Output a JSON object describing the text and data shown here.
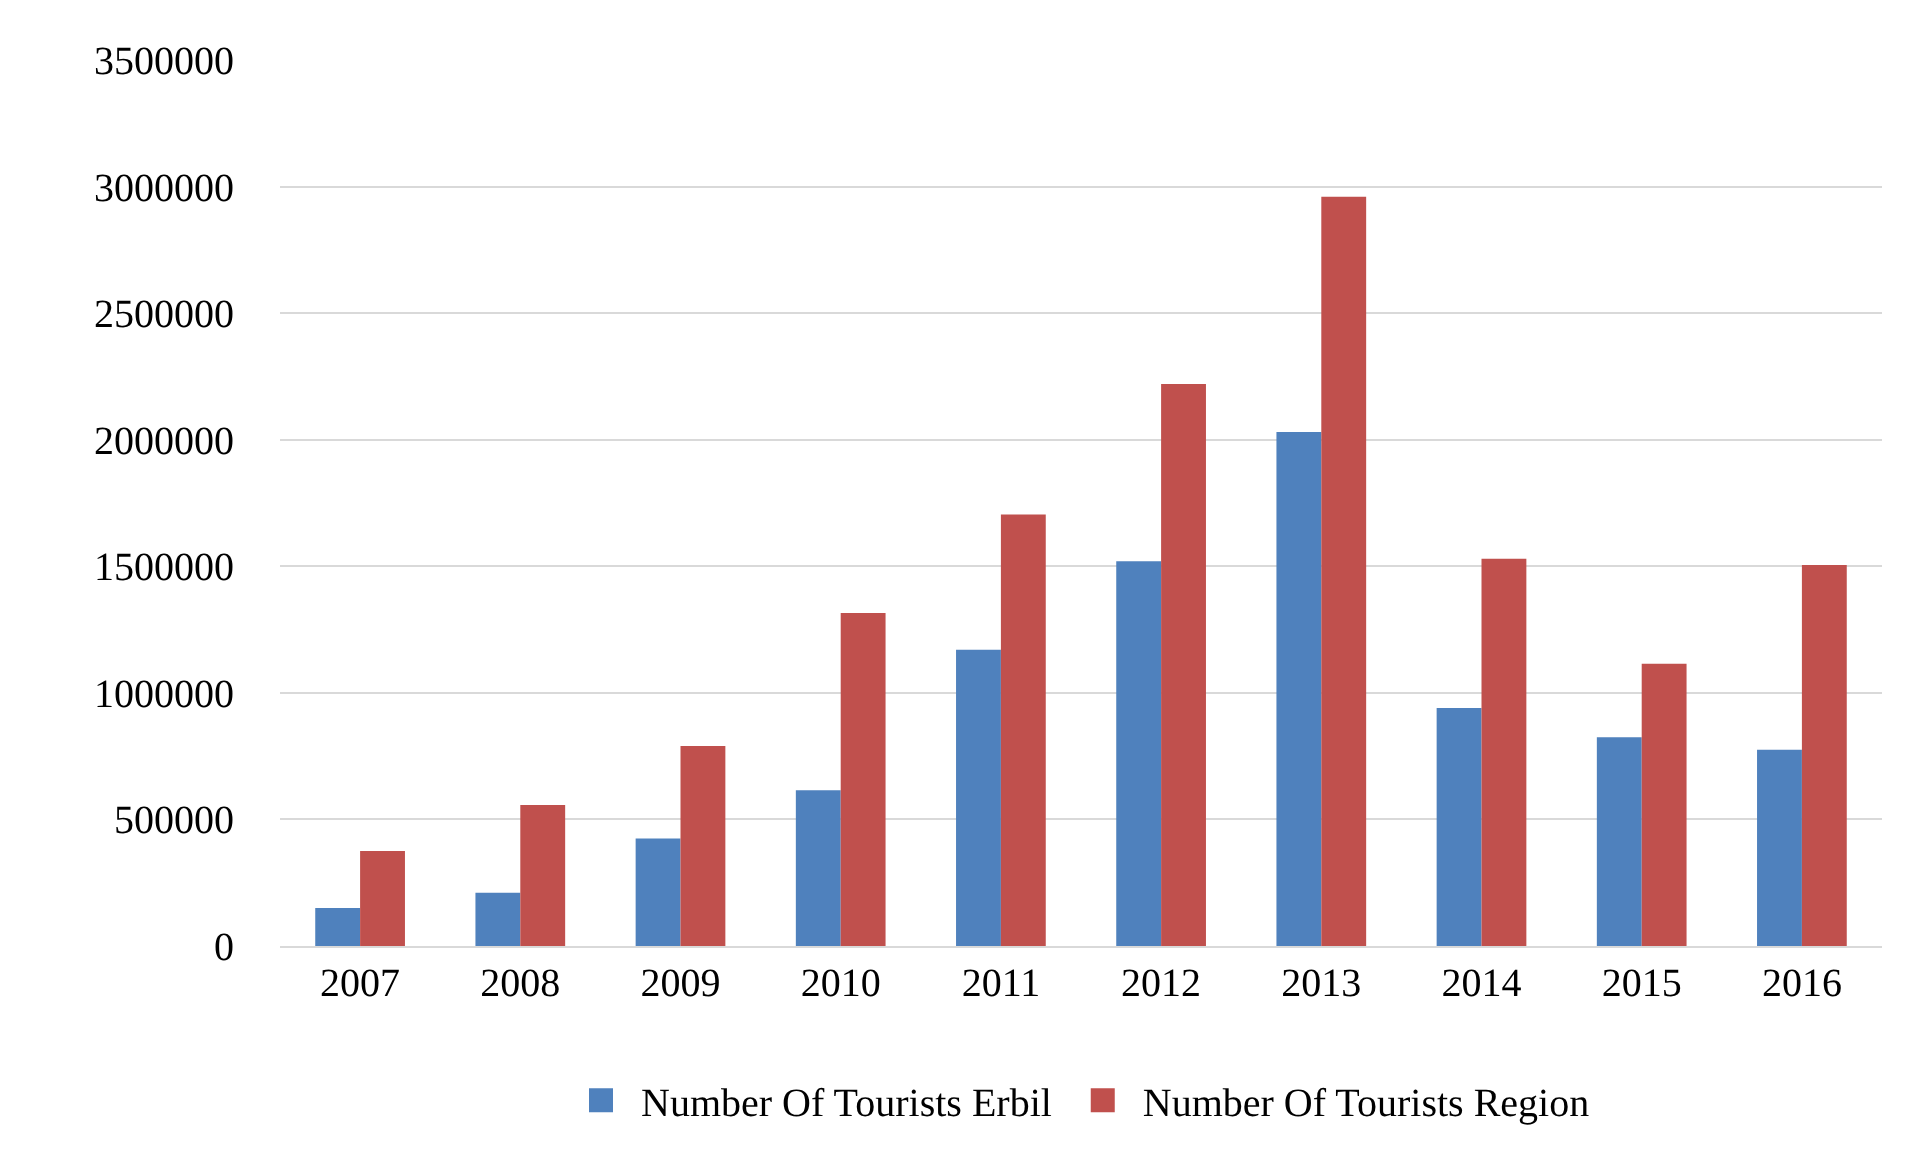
{
  "chart_data": {
    "type": "bar",
    "categories": [
      "2007",
      "2008",
      "2009",
      "2010",
      "2011",
      "2012",
      "2013",
      "2014",
      "2015",
      "2016"
    ],
    "series": [
      {
        "name": "Number Of Tourists Erbil",
        "color": "#4f81bd",
        "values": [
          150000,
          210000,
          425000,
          615000,
          1170000,
          1520000,
          2030000,
          940000,
          825000,
          775000
        ]
      },
      {
        "name": "Number Of Tourists Region",
        "color": "#c0504d",
        "values": [
          375000,
          557000,
          790000,
          1315000,
          1705000,
          2220000,
          2960000,
          1530000,
          1115000,
          1505000
        ]
      }
    ],
    "ylim": [
      0,
      3500000
    ],
    "yticks": [
      0,
      500000,
      1000000,
      1500000,
      2000000,
      2500000,
      3000000,
      3500000
    ],
    "grid": "y",
    "legend": "bottom"
  }
}
